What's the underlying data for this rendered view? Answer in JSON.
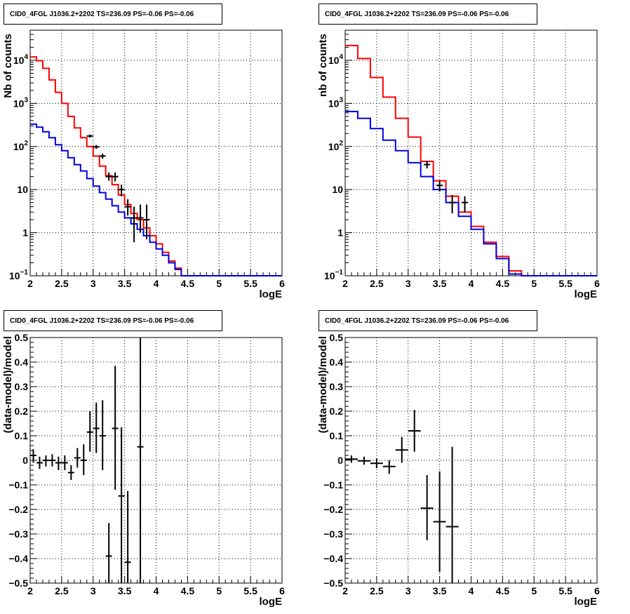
{
  "chart_data": [
    {
      "type": "step",
      "title": "CID0_4FGL J1036.2+2202 TS=236.09 PS=-0.06 PS=-0.06",
      "xlabel": "logE",
      "ylabel": "Nb of counts",
      "xlim": [
        2,
        6
      ],
      "ylim": [
        0.1,
        50000
      ],
      "yscale": "log",
      "grid": true,
      "x_ticks": [
        "2",
        "2.5",
        "3",
        "3.5",
        "4",
        "4.5",
        "5",
        "5.5",
        "6"
      ],
      "y_ticks": [
        {
          "value": 0.1,
          "label": "10",
          "exp": "−1"
        },
        {
          "value": 1,
          "label": "1",
          "exp": ""
        },
        {
          "value": 10,
          "label": "10",
          "exp": ""
        },
        {
          "value": 100,
          "label": "10",
          "exp": "2"
        },
        {
          "value": 1000,
          "label": "10",
          "exp": "3"
        },
        {
          "value": 10000,
          "label": "10",
          "exp": "4"
        }
      ],
      "bin_edges": [
        2.0,
        2.1,
        2.2,
        2.3,
        2.4,
        2.5,
        2.6,
        2.7,
        2.8,
        2.9,
        3.0,
        3.1,
        3.2,
        3.3,
        3.4,
        3.5,
        3.6,
        3.7,
        3.8,
        3.9,
        4.0,
        4.1,
        4.2,
        4.3,
        4.4,
        4.5,
        4.6,
        4.7,
        4.8,
        4.9,
        5.0,
        5.1,
        5.2,
        5.3,
        5.4,
        5.5,
        5.6,
        5.7,
        5.8,
        5.9,
        6.0
      ],
      "series": [
        {
          "color": "#ff0000",
          "values": [
            12000,
            9800,
            6500,
            3500,
            1800,
            1000,
            500,
            270,
            160,
            100,
            60,
            35,
            21,
            13,
            7.5,
            4.5,
            2.8,
            2.0,
            1.3,
            0.85,
            0.55,
            0.35,
            0.22,
            0.15,
            0.1,
            0.1,
            0.1,
            0.1,
            0.1,
            0.1,
            0.1,
            0.1,
            0.1,
            0.1,
            0.1,
            0.1,
            0.1,
            0.1,
            0.1,
            0.1
          ]
        },
        {
          "color": "#0000dd",
          "values": [
            330,
            280,
            220,
            160,
            110,
            80,
            55,
            38,
            27,
            18,
            12,
            8.5,
            6,
            4.2,
            3.0,
            2.2,
            1.6,
            1.2,
            0.85,
            0.6,
            0.42,
            0.3,
            0.2,
            0.14,
            0.1,
            0.1,
            0.1,
            0.1,
            0.1,
            0.1,
            0.1,
            0.1,
            0.1,
            0.1,
            0.1,
            0.1,
            0.1,
            0.1,
            0.1,
            0.1
          ]
        }
      ],
      "points": [
        {
          "x": 2.95,
          "y": 175,
          "ylo": 160,
          "yhi": 190
        },
        {
          "x": 3.05,
          "y": 98,
          "ylo": 88,
          "yhi": 108
        },
        {
          "x": 3.15,
          "y": 60,
          "ylo": 52,
          "yhi": 68
        },
        {
          "x": 3.25,
          "y": 20,
          "ylo": 16,
          "yhi": 25
        },
        {
          "x": 3.35,
          "y": 20,
          "ylo": 15.5,
          "yhi": 25
        },
        {
          "x": 3.45,
          "y": 10,
          "ylo": 7,
          "yhi": 13
        },
        {
          "x": 3.55,
          "y": 4,
          "ylo": 2.5,
          "yhi": 6
        },
        {
          "x": 3.65,
          "y": 2.2,
          "ylo": 0.6,
          "yhi": 4
        },
        {
          "x": 3.75,
          "y": 2.2,
          "ylo": 1,
          "yhi": 4.5
        },
        {
          "x": 3.85,
          "y": 2.0,
          "ylo": 0.7,
          "yhi": 4.5
        }
      ]
    },
    {
      "type": "step",
      "title": "CID0_4FGL J1036.2+2202 TS=236.09 PS=-0.06 PS=-0.06",
      "xlabel": "logE",
      "ylabel": "nb of counts",
      "xlim": [
        2,
        6
      ],
      "ylim": [
        0.1,
        50000
      ],
      "yscale": "log",
      "grid": true,
      "x_ticks": [
        "2",
        "2.5",
        "3",
        "3.5",
        "4",
        "4.5",
        "5",
        "5.5",
        "6"
      ],
      "y_ticks": [
        {
          "value": 0.1,
          "label": "10",
          "exp": "−1"
        },
        {
          "value": 1,
          "label": "1",
          "exp": ""
        },
        {
          "value": 10,
          "label": "10",
          "exp": ""
        },
        {
          "value": 100,
          "label": "10",
          "exp": "2"
        },
        {
          "value": 1000,
          "label": "10",
          "exp": "3"
        },
        {
          "value": 10000,
          "label": "10",
          "exp": "4"
        }
      ],
      "bin_edges": [
        2.0,
        2.2,
        2.4,
        2.6,
        2.8,
        3.0,
        3.2,
        3.4,
        3.6,
        3.8,
        4.0,
        4.2,
        4.4,
        4.6,
        4.8,
        5.0,
        5.2,
        5.4,
        5.6,
        5.8,
        6.0
      ],
      "series": [
        {
          "color": "#ff0000",
          "values": [
            22000,
            11000,
            4000,
            1400,
            450,
            165,
            45,
            16,
            7,
            3,
            1.4,
            0.6,
            0.28,
            0.13,
            0.1,
            0.1,
            0.1,
            0.1,
            0.1,
            0.1
          ]
        },
        {
          "color": "#0000dd",
          "values": [
            650,
            450,
            260,
            140,
            80,
            42,
            20,
            10,
            5,
            2.4,
            1.2,
            0.55,
            0.25,
            0.11,
            0.1,
            0.1,
            0.1,
            0.1,
            0.1,
            0.1
          ]
        }
      ],
      "points": [
        {
          "x": 3.3,
          "y": 38,
          "ylo": 31,
          "yhi": 46
        },
        {
          "x": 3.5,
          "y": 12.5,
          "ylo": 9,
          "yhi": 16
        },
        {
          "x": 3.7,
          "y": 5,
          "ylo": 2.8,
          "yhi": 7.5
        },
        {
          "x": 3.9,
          "y": 5,
          "ylo": 3,
          "yhi": 7
        }
      ]
    },
    {
      "type": "scatter",
      "title": "CID0_4FGL J1036.2+2202 TS=236.09 PS=-0.06 PS=-0.06",
      "xlabel": "logE",
      "ylabel": "(data-model)/model",
      "xlim": [
        2,
        6
      ],
      "ylim": [
        -0.5,
        0.5
      ],
      "yscale": "linear",
      "grid": true,
      "x_ticks": [
        "2",
        "2.5",
        "3",
        "3.5",
        "4",
        "4.5",
        "5",
        "5.5",
        "6"
      ],
      "y_ticks": [
        {
          "value": 0.5,
          "label": "0.5"
        },
        {
          "value": 0.4,
          "label": "0.4"
        },
        {
          "value": 0.3,
          "label": "0.3"
        },
        {
          "value": 0.2,
          "label": "0.2"
        },
        {
          "value": 0.1,
          "label": "0.1"
        },
        {
          "value": 0,
          "label": "0"
        },
        {
          "value": -0.1,
          "label": "−0.1"
        },
        {
          "value": -0.2,
          "label": "−0.2"
        },
        {
          "value": -0.3,
          "label": "−0.3"
        },
        {
          "value": -0.4,
          "label": "−0.4"
        },
        {
          "value": -0.5,
          "label": "−0.5"
        }
      ],
      "xerr": 0.05,
      "points": [
        {
          "x": 2.05,
          "y": 0.02,
          "ylo": -0.01,
          "yhi": 0.045
        },
        {
          "x": 2.15,
          "y": -0.01,
          "ylo": -0.035,
          "yhi": 0.015
        },
        {
          "x": 2.25,
          "y": 0.0,
          "ylo": -0.025,
          "yhi": 0.02
        },
        {
          "x": 2.35,
          "y": 0.0,
          "ylo": -0.025,
          "yhi": 0.025
        },
        {
          "x": 2.45,
          "y": -0.01,
          "ylo": -0.04,
          "yhi": 0.015
        },
        {
          "x": 2.55,
          "y": -0.01,
          "ylo": -0.04,
          "yhi": 0.02
        },
        {
          "x": 2.65,
          "y": -0.05,
          "ylo": -0.08,
          "yhi": -0.02
        },
        {
          "x": 2.75,
          "y": 0.01,
          "ylo": -0.03,
          "yhi": 0.05
        },
        {
          "x": 2.85,
          "y": 0.0,
          "ylo": -0.06,
          "yhi": 0.065
        },
        {
          "x": 2.95,
          "y": 0.115,
          "ylo": 0.035,
          "yhi": 0.2
        },
        {
          "x": 3.05,
          "y": 0.13,
          "ylo": 0.03,
          "yhi": 0.235
        },
        {
          "x": 3.15,
          "y": 0.1,
          "ylo": -0.04,
          "yhi": 0.245
        },
        {
          "x": 3.25,
          "y": -0.39,
          "ylo": -0.5,
          "yhi": -0.255
        },
        {
          "x": 3.35,
          "y": 0.13,
          "ylo": -0.12,
          "yhi": 0.385
        },
        {
          "x": 3.45,
          "y": -0.145,
          "ylo": -0.5,
          "yhi": 0.135
        },
        {
          "x": 3.55,
          "y": -0.415,
          "ylo": -0.5,
          "yhi": -0.125
        },
        {
          "x": 3.75,
          "y": 0.055,
          "ylo": -0.5,
          "yhi": 0.5
        }
      ]
    },
    {
      "type": "scatter",
      "title": "CID0_4FGL J1036.2+2202 TS=236.09 PS=-0.06 PS=-0.06",
      "xlabel": "logE",
      "ylabel": "(data-model)/model",
      "xlim": [
        2,
        6
      ],
      "ylim": [
        -0.5,
        0.5
      ],
      "yscale": "linear",
      "grid": true,
      "x_ticks": [
        "2",
        "2.5",
        "3",
        "3.5",
        "4",
        "4.5",
        "5",
        "5.5",
        "6"
      ],
      "y_ticks": [
        {
          "value": 0.5,
          "label": "0.5"
        },
        {
          "value": 0.4,
          "label": "0.4"
        },
        {
          "value": 0.3,
          "label": "0.3"
        },
        {
          "value": 0.2,
          "label": "0.2"
        },
        {
          "value": 0.1,
          "label": "0.1"
        },
        {
          "value": 0,
          "label": "0"
        },
        {
          "value": -0.1,
          "label": "−0.1"
        },
        {
          "value": -0.2,
          "label": "−0.2"
        },
        {
          "value": -0.3,
          "label": "−0.3"
        },
        {
          "value": -0.4,
          "label": "−0.4"
        },
        {
          "value": -0.5,
          "label": "−0.5"
        }
      ],
      "xerr": 0.1,
      "points": [
        {
          "x": 2.1,
          "y": 0.005,
          "ylo": -0.01,
          "yhi": 0.02
        },
        {
          "x": 2.3,
          "y": -0.002,
          "ylo": -0.018,
          "yhi": 0.015
        },
        {
          "x": 2.5,
          "y": -0.012,
          "ylo": -0.032,
          "yhi": 0.008
        },
        {
          "x": 2.7,
          "y": -0.025,
          "ylo": -0.055,
          "yhi": 0.0
        },
        {
          "x": 2.9,
          "y": 0.042,
          "ylo": -0.01,
          "yhi": 0.095
        },
        {
          "x": 3.1,
          "y": 0.12,
          "ylo": 0.035,
          "yhi": 0.205
        },
        {
          "x": 3.3,
          "y": -0.195,
          "ylo": -0.325,
          "yhi": -0.06
        },
        {
          "x": 3.5,
          "y": -0.25,
          "ylo": -0.455,
          "yhi": -0.045
        },
        {
          "x": 3.7,
          "y": -0.27,
          "ylo": -0.5,
          "yhi": 0.055
        }
      ]
    }
  ]
}
